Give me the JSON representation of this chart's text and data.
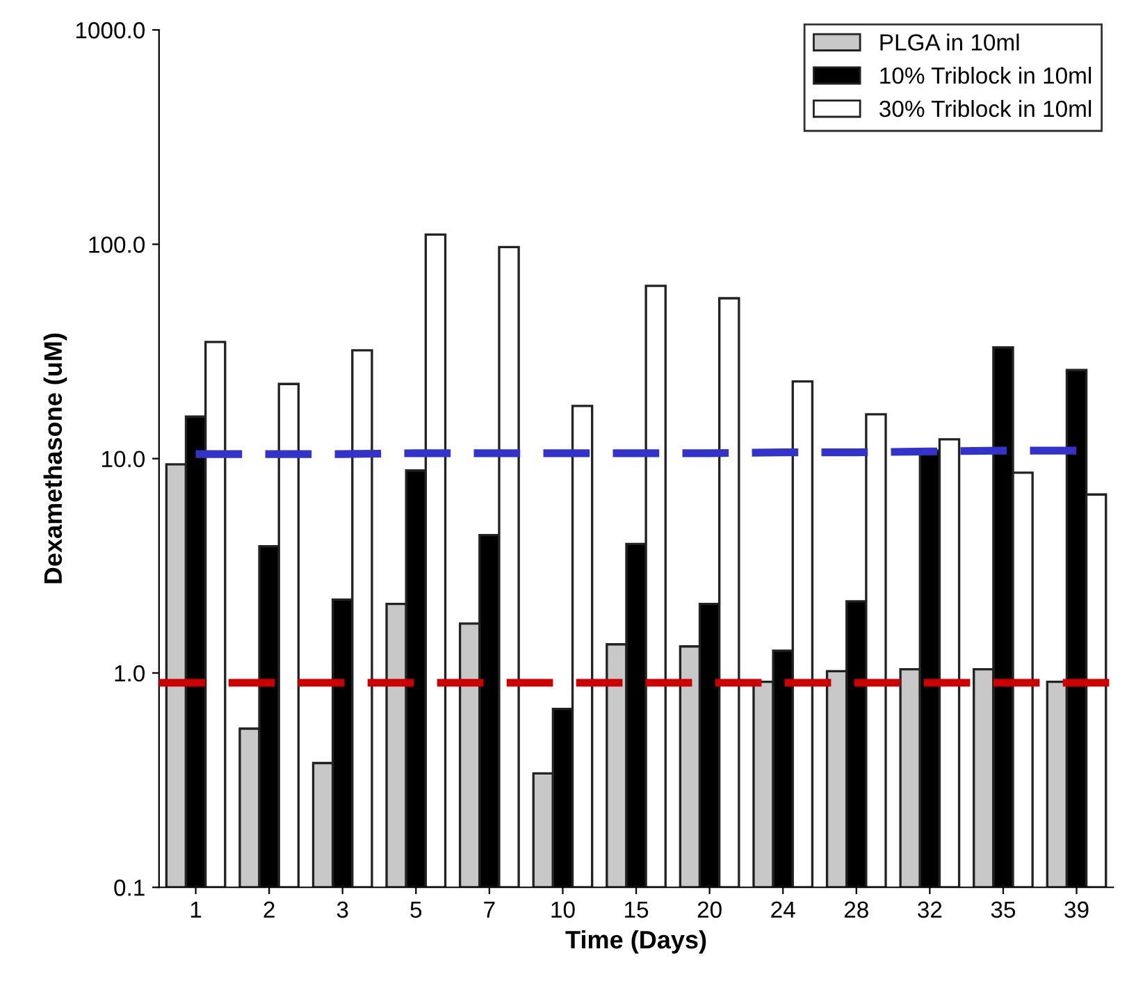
{
  "chart_data": {
    "type": "bar",
    "xlabel": "Time (Days)",
    "ylabel": "Dexamethasone (uM)",
    "categories": [
      "1",
      "2",
      "3",
      "5",
      "7",
      "10",
      "15",
      "20",
      "24",
      "28",
      "32",
      "35",
      "39"
    ],
    "series": [
      {
        "name": "PLGA in 10ml",
        "color": "#c8c8c8",
        "values": [
          9.4,
          0.55,
          0.38,
          2.1,
          1.7,
          0.34,
          1.36,
          1.33,
          0.91,
          1.02,
          1.04,
          1.04,
          0.91
        ]
      },
      {
        "name": "10% Triblock in 10ml",
        "color": "#000000",
        "values": [
          15.7,
          3.9,
          2.2,
          8.8,
          4.4,
          0.68,
          4.0,
          2.1,
          1.27,
          2.16,
          10.9,
          33,
          25.9
        ]
      },
      {
        "name": "30% Triblock in 10ml",
        "color": "#ffffff",
        "values": [
          35,
          22.3,
          32,
          111,
          97,
          17.6,
          64,
          56,
          22.9,
          16.1,
          12.3,
          8.6,
          6.8
        ]
      },
      {
        "type": "line",
        "color": "#3333cc",
        "line_style": "dashed",
        "values": [
          10.5,
          10.5,
          10.5,
          10.6,
          10.6,
          10.6,
          10.6,
          10.6,
          10.7,
          10.7,
          10.8,
          10.9,
          10.9
        ]
      }
    ],
    "ref_lines": [
      {
        "axis": "y",
        "value": 0.9,
        "color": "#cc0000",
        "line_style": "dashed"
      }
    ],
    "log": "y",
    "ylim": [
      0.1,
      1000
    ],
    "yticks": [
      {
        "value": 0.1,
        "label": "0.1"
      },
      {
        "value": 1,
        "label": "1.0"
      },
      {
        "value": 10,
        "label": "10.0"
      },
      {
        "value": 100,
        "label": "100.0"
      },
      {
        "value": 1000,
        "label": "1000.0"
      }
    ],
    "legend": "top right",
    "grid": false
  }
}
